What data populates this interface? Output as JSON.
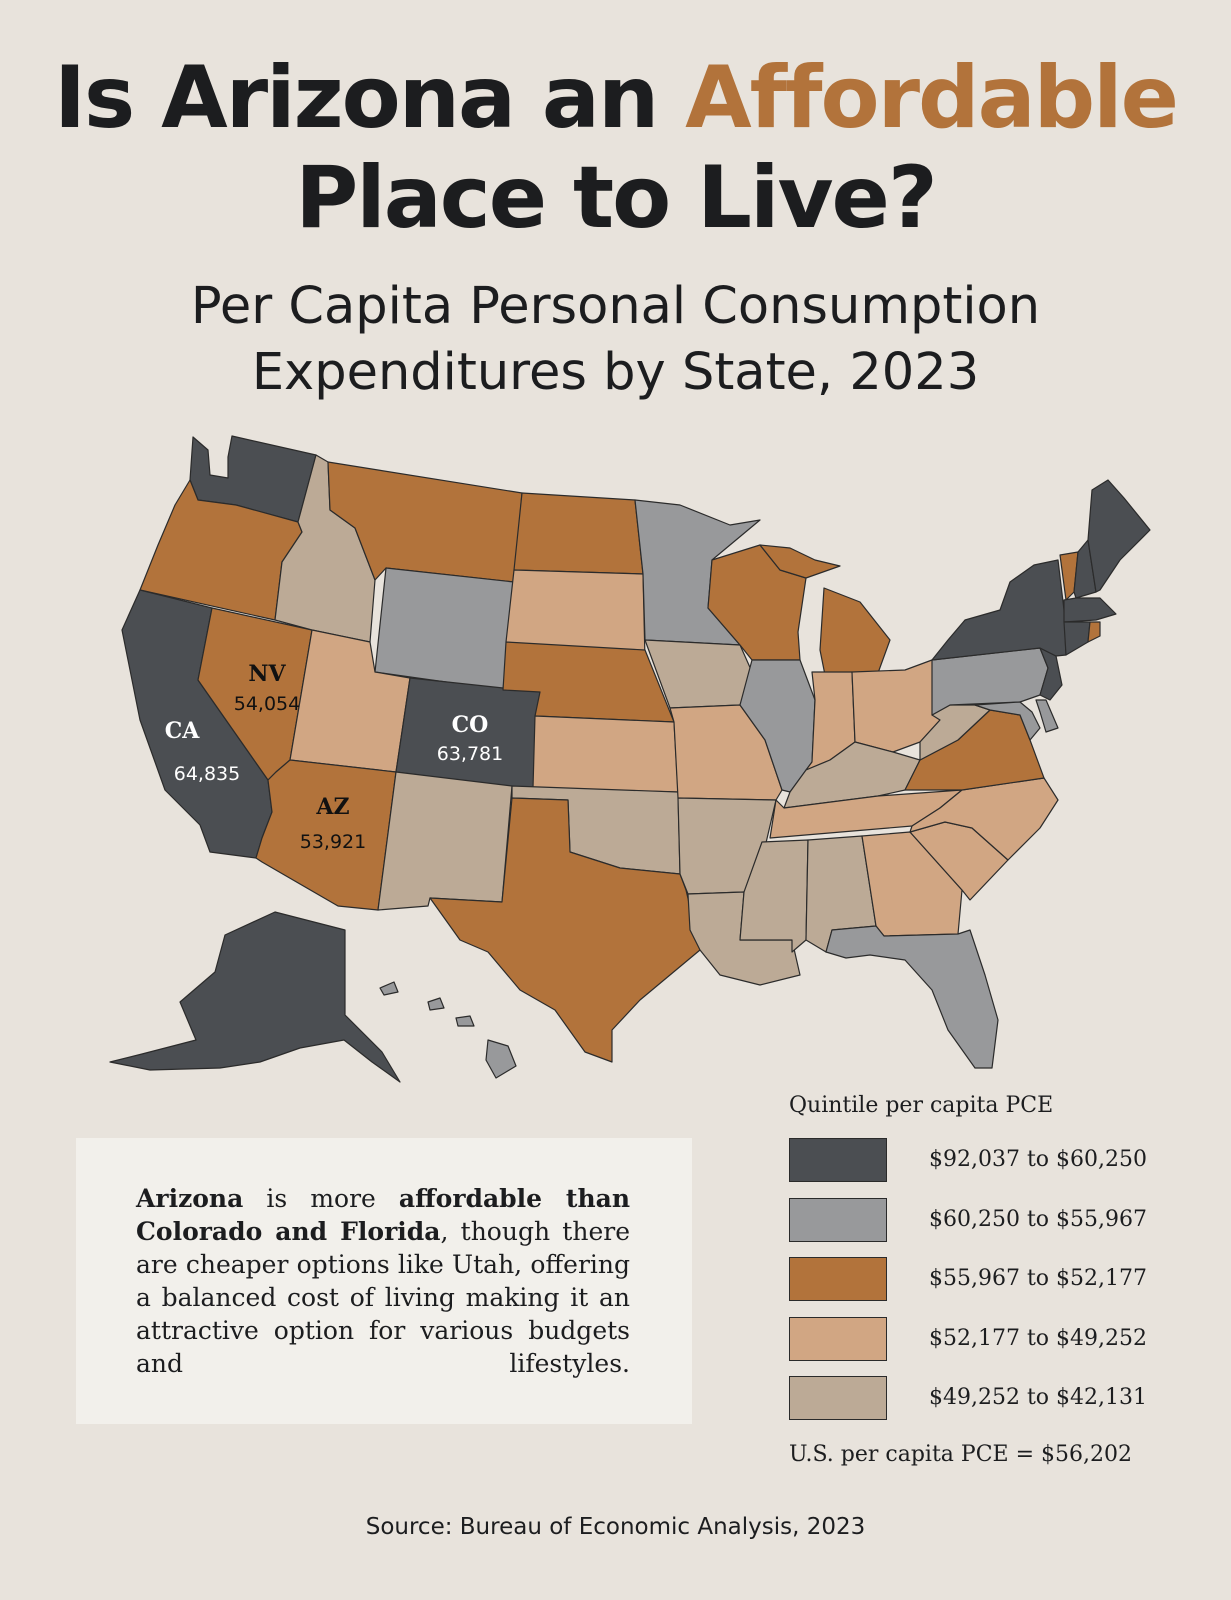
{
  "title": {
    "part1": "Is Arizona an ",
    "accent": "Affordable",
    "line2": "Place to Live?"
  },
  "subtitle": {
    "line1": "Per Capita Personal Consumption",
    "line2": "Expenditures by State, 2023"
  },
  "colors": {
    "background": "#e8e3dc",
    "accent": "#b2733b",
    "q1": "#4b4e52",
    "q2": "#98999b",
    "q3": "#b2733b",
    "q4": "#d1a683",
    "q5": "#bcaa96"
  },
  "map": {
    "state_quintiles": {
      "WA": "q1",
      "OR": "q3",
      "CA": "q1",
      "NV": "q3",
      "ID": "q5",
      "MT": "q3",
      "WY": "q2",
      "UT": "q4",
      "AZ": "q3",
      "CO": "q1",
      "NM": "q5",
      "ND": "q3",
      "SD": "q4",
      "NE": "q3",
      "KS": "q4",
      "OK": "q5",
      "TX": "q3",
      "MN": "q2",
      "IA": "q5",
      "MO": "q4",
      "AR": "q5",
      "LA": "q5",
      "WI": "q3",
      "IL": "q2",
      "MI": "q3",
      "IN": "q4",
      "OH": "q4",
      "KY": "q5",
      "TN": "q4",
      "MS": "q5",
      "AL": "q5",
      "GA": "q4",
      "FL": "q2",
      "SC": "q4",
      "NC": "q4",
      "VA": "q3",
      "WV": "q5",
      "PA": "q2",
      "NY": "q1",
      "MD": "q2",
      "DE": "q2",
      "NJ": "q1",
      "CT": "q1",
      "RI": "q3",
      "MA": "q1",
      "VT": "q3",
      "NH": "q1",
      "ME": "q1",
      "AK": "q1",
      "HI": "q2"
    },
    "labels": [
      {
        "abbr": "NV",
        "value": "54,054"
      },
      {
        "abbr": "CA",
        "value": "64,835"
      },
      {
        "abbr": "CO",
        "value": "63,781"
      },
      {
        "abbr": "AZ",
        "value": "53,921"
      }
    ]
  },
  "note": {
    "b1": "Arizona",
    "t1": " is more ",
    "b2": "affordable than Colorado and Florida",
    "t2": ", though there are cheaper options like Utah, offering a balanced cost of living making it an attractive option for various budgets and lifestyles."
  },
  "legend": {
    "title": "Quintile per capita PCE",
    "items": [
      {
        "label": "$92,037 to $60,250",
        "color": "#4b4e52"
      },
      {
        "label": "$60,250 to $55,967",
        "color": "#98999b"
      },
      {
        "label": "$55,967 to $52,177",
        "color": "#b2733b"
      },
      {
        "label": "$52,177 to $49,252",
        "color": "#d1a683"
      },
      {
        "label": "$49,252 to $42,131",
        "color": "#bcaa96"
      }
    ],
    "footer": "U.S. per capita PCE = $56,202"
  },
  "source": "Source: Bureau of Economic Analysis, 2023"
}
